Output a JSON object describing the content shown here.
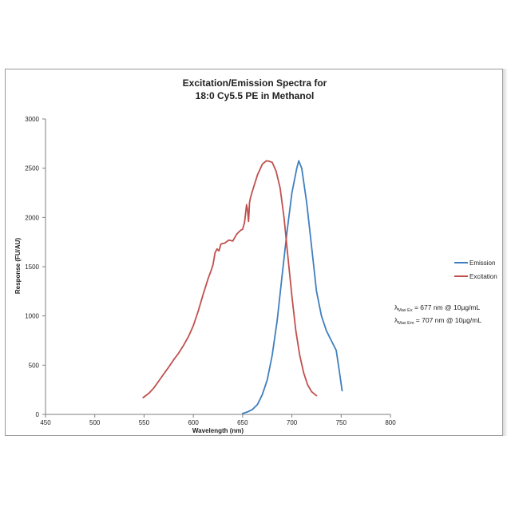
{
  "chart_data": {
    "type": "line",
    "title_lines": [
      "Excitation/Emission Spectra for",
      "18:0 Cy5.5 PE in Methanol"
    ],
    "xlabel": "Wavelength (nm)",
    "ylabel": "Response (FU/AU)",
    "xlim": [
      450,
      800
    ],
    "ylim": [
      0,
      3000
    ],
    "x_ticks": [
      450,
      500,
      550,
      600,
      650,
      700,
      750,
      800
    ],
    "y_ticks": [
      0,
      500,
      1000,
      1500,
      2000,
      2500,
      3000
    ],
    "grid": false,
    "legend_position": "right",
    "series": [
      {
        "name": "Emission",
        "color": "#3f7fbf",
        "x": [
          650,
          655,
          660,
          665,
          670,
          675,
          680,
          685,
          690,
          695,
          700,
          705,
          707,
          710,
          715,
          720,
          725,
          730,
          735,
          740,
          745,
          748,
          751
        ],
        "y": [
          10,
          25,
          50,
          100,
          200,
          350,
          600,
          950,
          1400,
          1850,
          2250,
          2500,
          2575,
          2500,
          2150,
          1700,
          1250,
          1000,
          850,
          750,
          650,
          450,
          240
        ]
      },
      {
        "name": "Excitation",
        "color": "#c0504d",
        "x": [
          549,
          555,
          560,
          565,
          570,
          575,
          580,
          585,
          590,
          595,
          600,
          605,
          610,
          615,
          618,
          620,
          622,
          624,
          626,
          628,
          632,
          636,
          640,
          644,
          646,
          648,
          650,
          652,
          654,
          655,
          656,
          657,
          658,
          660,
          665,
          670,
          674,
          677,
          680,
          684,
          688,
          692,
          696,
          700,
          704,
          708,
          712,
          716,
          720,
          725
        ],
        "y": [
          170,
          215,
          270,
          340,
          410,
          480,
          555,
          620,
          700,
          790,
          900,
          1050,
          1220,
          1380,
          1460,
          1520,
          1640,
          1680,
          1660,
          1730,
          1740,
          1770,
          1760,
          1830,
          1850,
          1870,
          1880,
          1950,
          2130,
          2080,
          1960,
          2150,
          2200,
          2270,
          2430,
          2540,
          2575,
          2570,
          2560,
          2470,
          2300,
          2000,
          1600,
          1200,
          850,
          600,
          420,
          300,
          230,
          190
        ]
      }
    ],
    "annotations": [
      {
        "lambda": "λ",
        "sub": "Max Ex",
        "value": " = 677 nm @ 10µg/mL"
      },
      {
        "lambda": "λ",
        "sub": "Max Em",
        "value": " = 707 nm @ 10µg/mL"
      }
    ]
  }
}
